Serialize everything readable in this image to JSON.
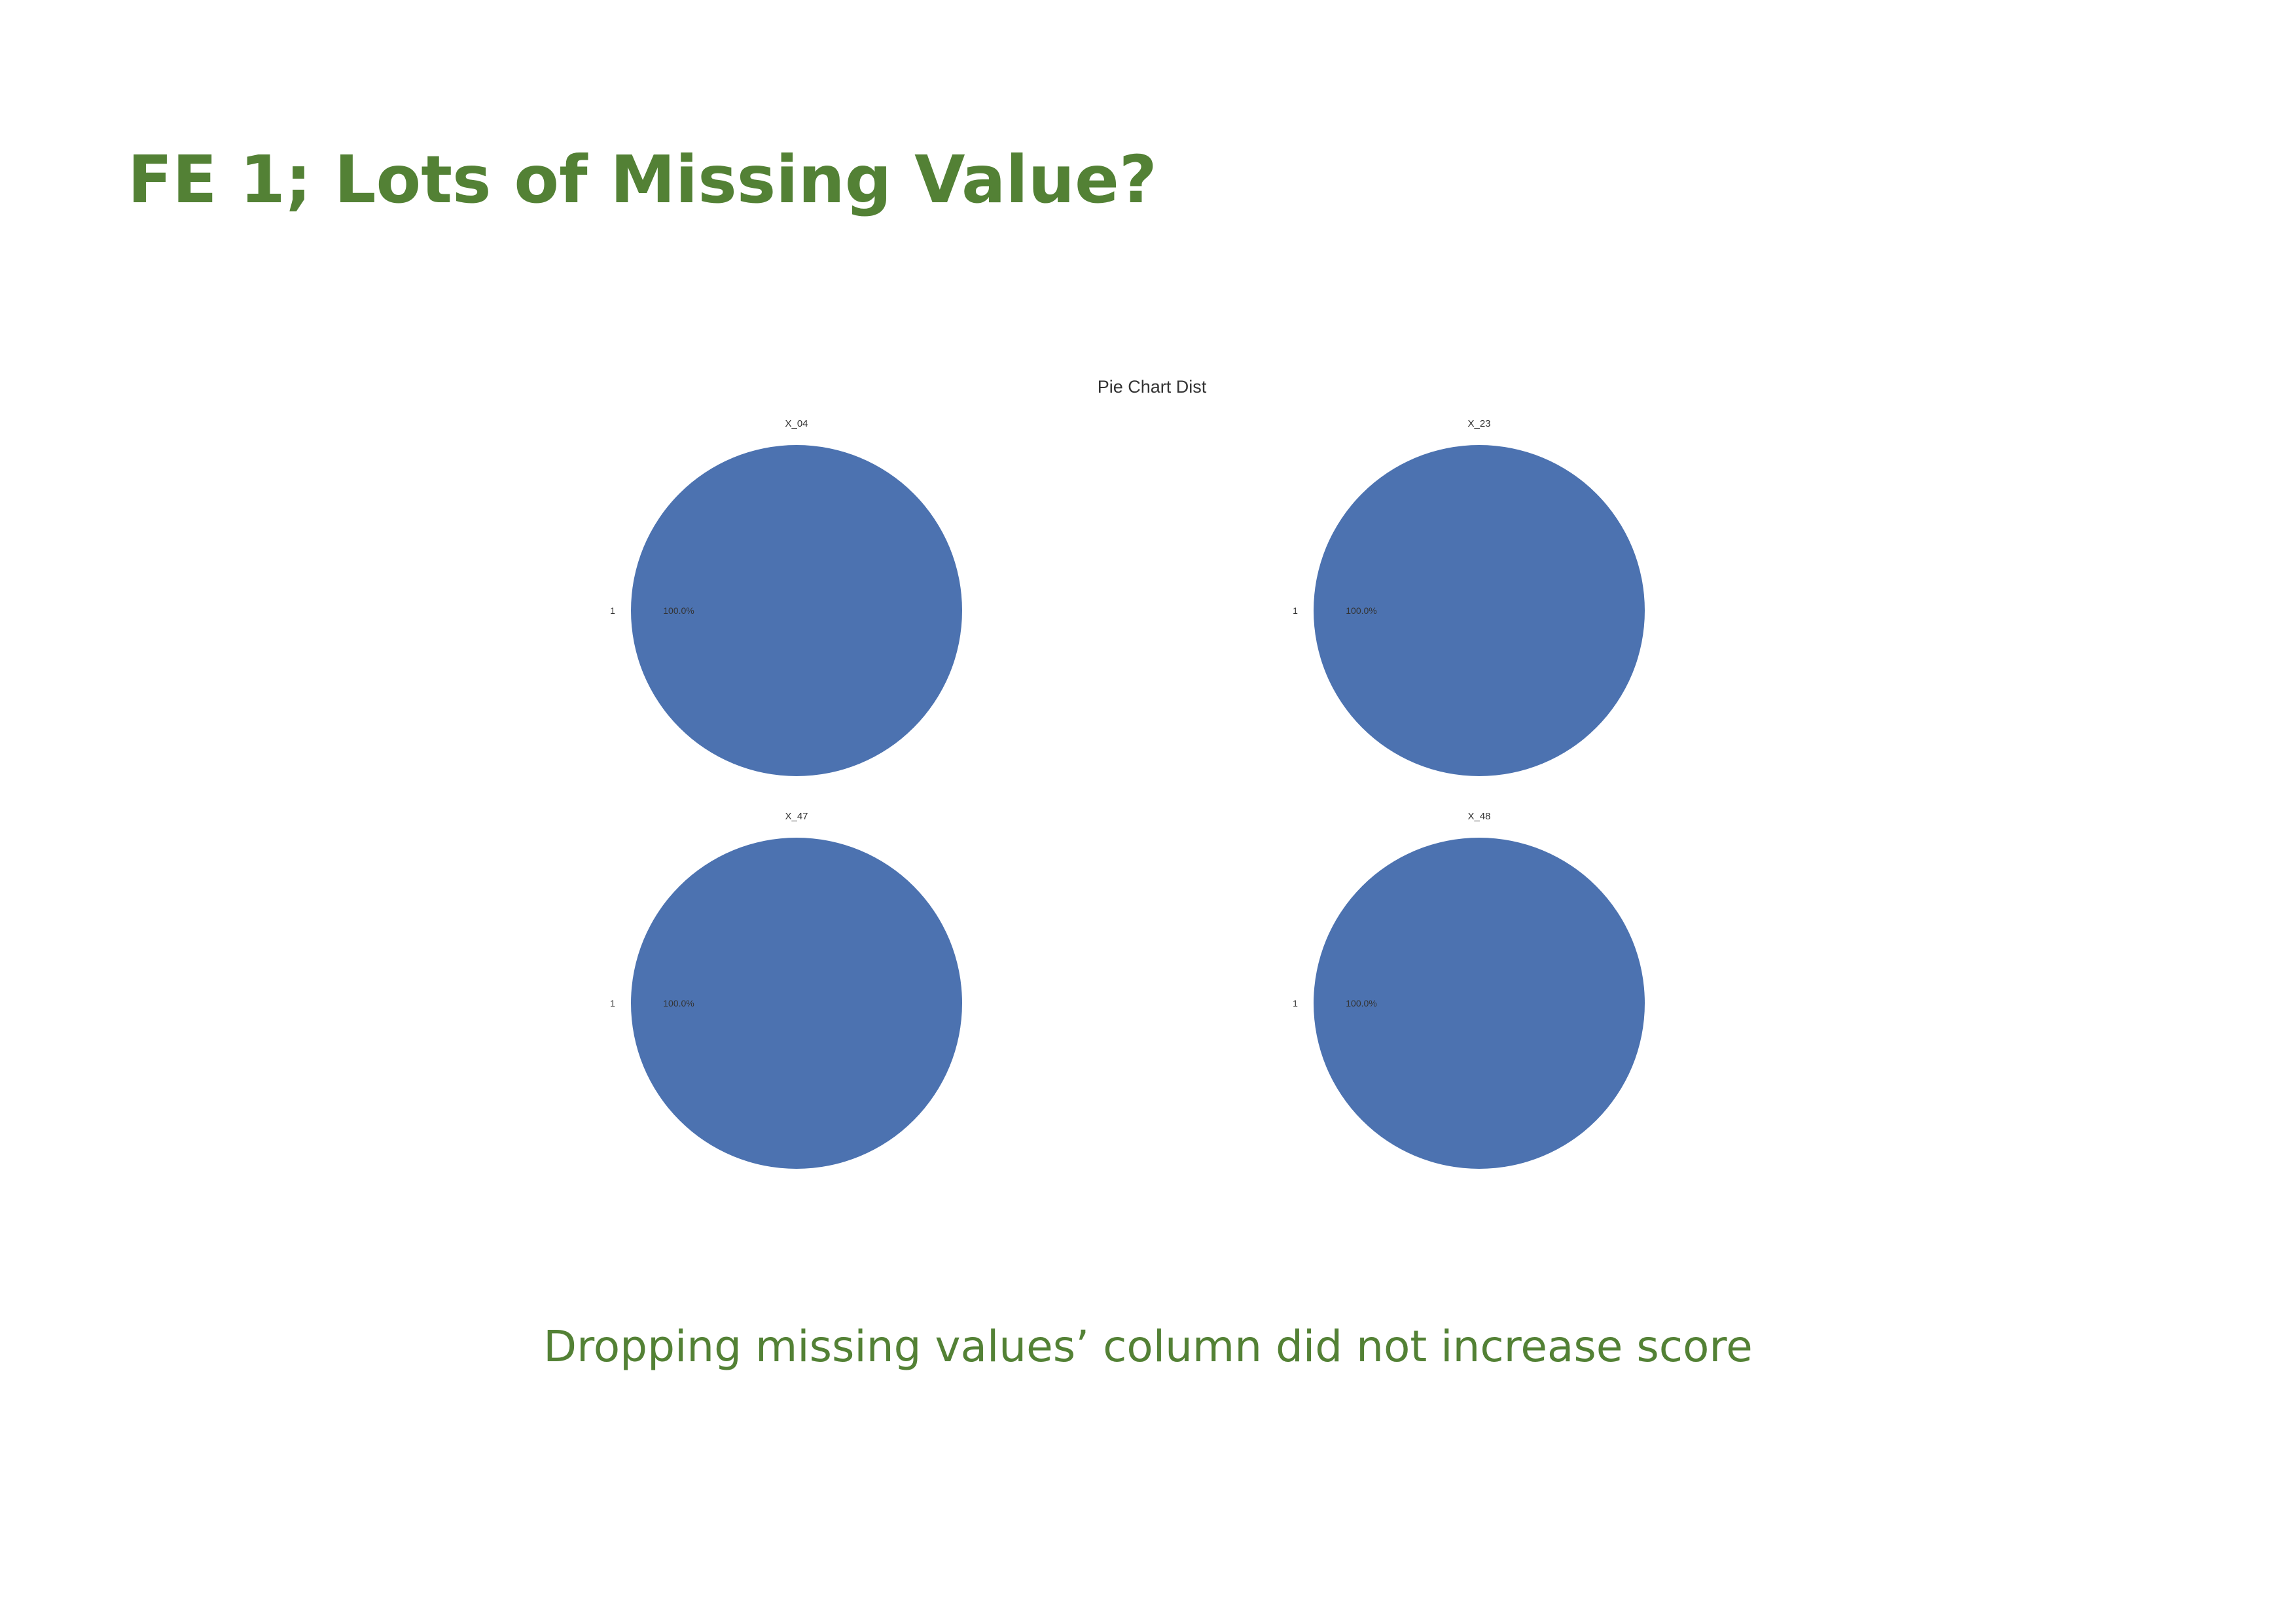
{
  "slide": {
    "title": "FE 1; Lots of Missing Value?",
    "caption": "Dropping missing values’ column did not increase score"
  },
  "colors": {
    "heading": "#538135",
    "pie_fill": "#4C72B0"
  },
  "chart_data": {
    "type": "pie",
    "title": "Pie Chart Dist",
    "layout": "2x2 grid",
    "charts": [
      {
        "title": "X_04",
        "labels": [
          "1"
        ],
        "values": [
          100.0
        ],
        "pct_labels": [
          "100.0%"
        ]
      },
      {
        "title": "X_23",
        "labels": [
          "1"
        ],
        "values": [
          100.0
        ],
        "pct_labels": [
          "100.0%"
        ]
      },
      {
        "title": "X_47",
        "labels": [
          "1"
        ],
        "values": [
          100.0
        ],
        "pct_labels": [
          "100.0%"
        ]
      },
      {
        "title": "X_48",
        "labels": [
          "1"
        ],
        "values": [
          100.0
        ],
        "pct_labels": [
          "100.0%"
        ]
      }
    ]
  }
}
